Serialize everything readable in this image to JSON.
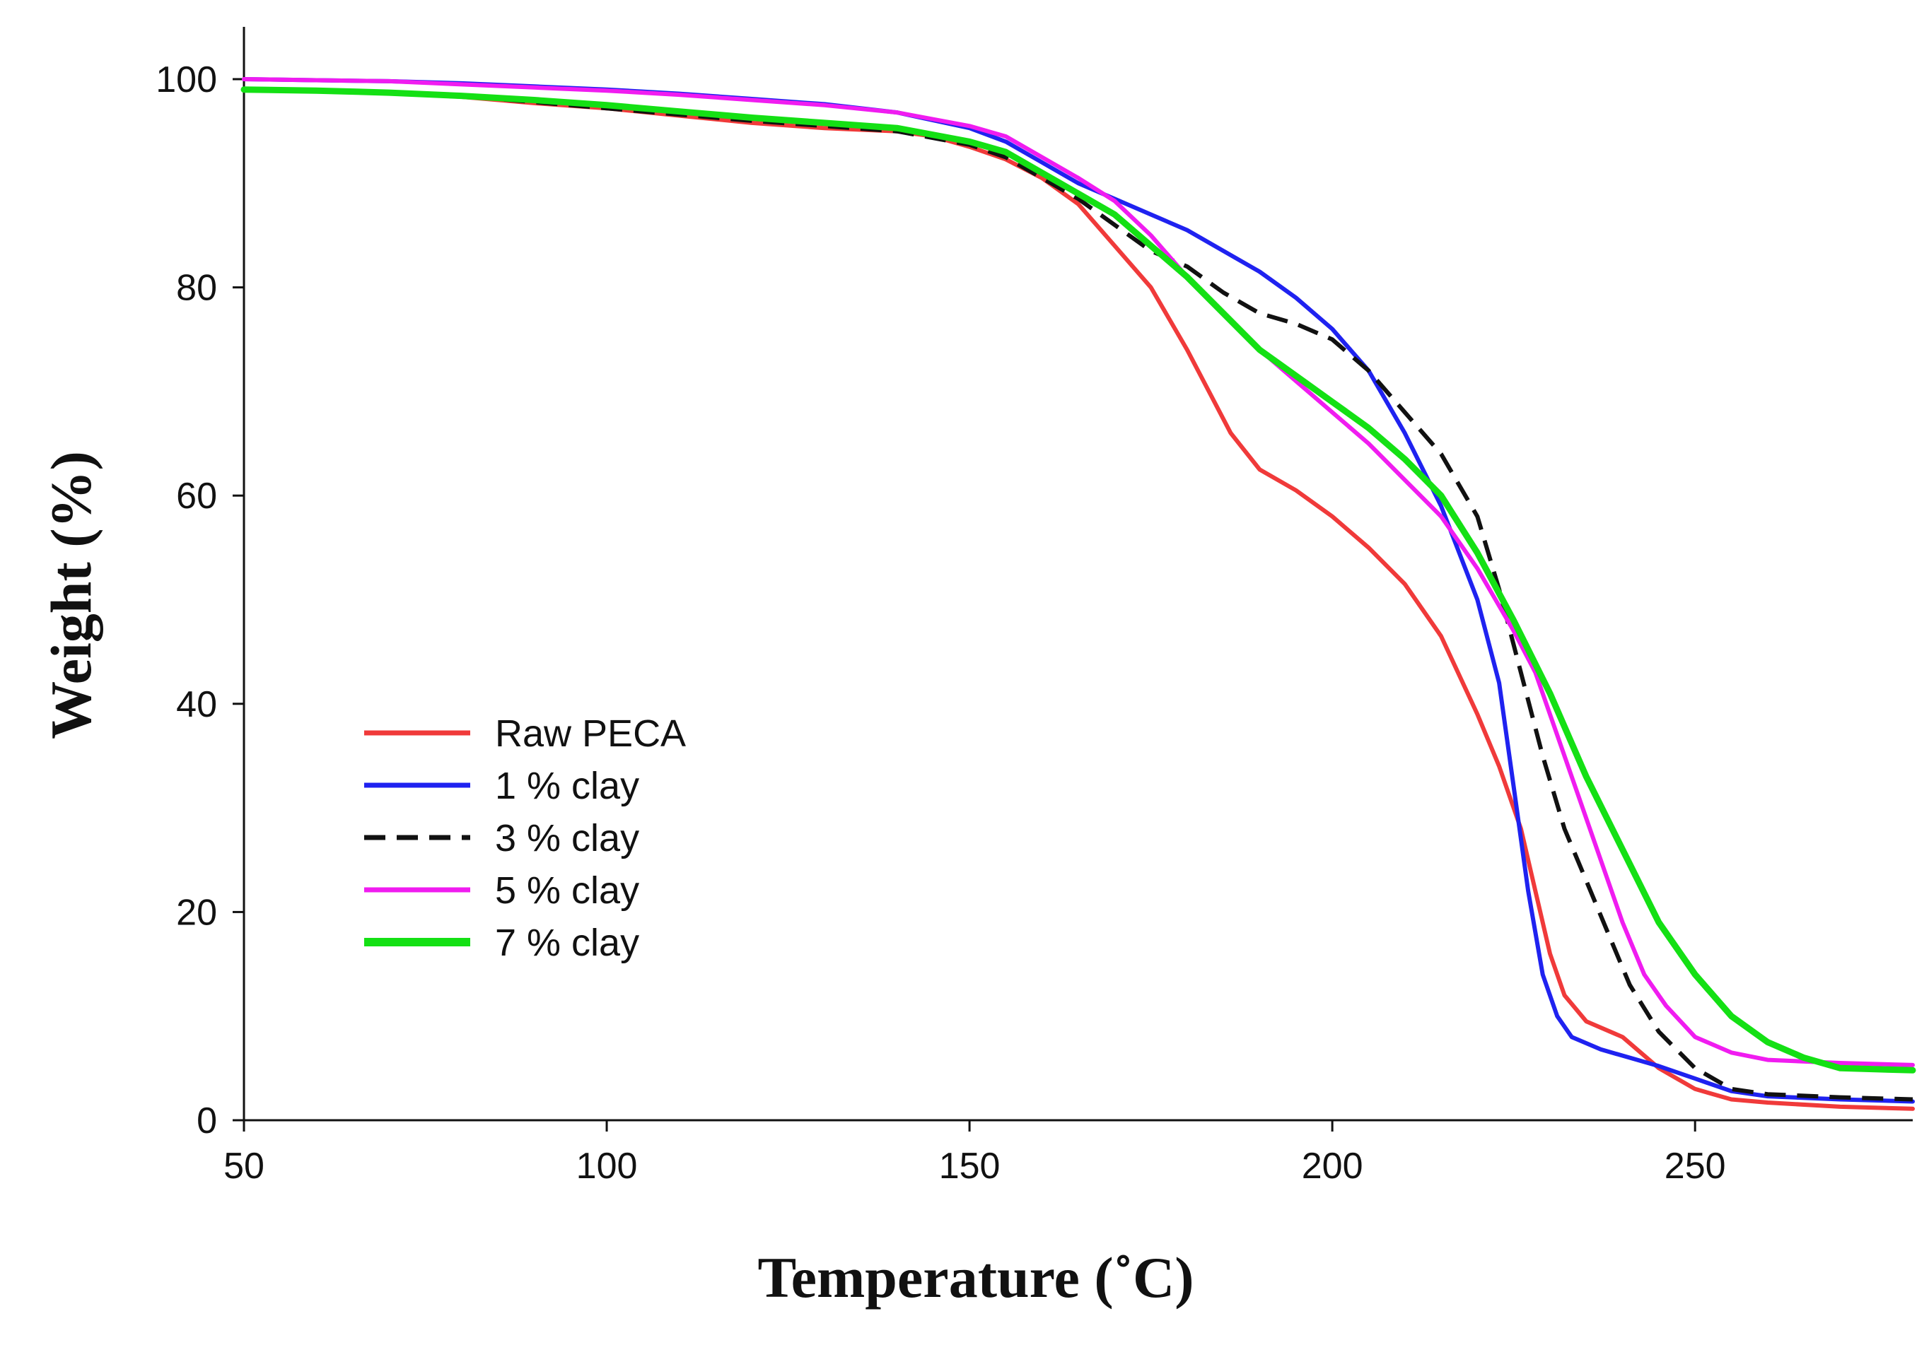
{
  "chart_data": {
    "type": "line",
    "xlabel": "Temperature (˚C)",
    "ylabel": "Weight (%)",
    "xlim": [
      50,
      280
    ],
    "ylim": [
      0,
      105
    ],
    "xticks": [
      50,
      100,
      150,
      200,
      250
    ],
    "yticks": [
      0,
      20,
      40,
      60,
      80,
      100
    ],
    "grid": false,
    "legend_position": "lower-left",
    "series": [
      {
        "name": "Raw PECA",
        "color": "#f03a3a",
        "dash": "solid",
        "points": [
          [
            50,
            99
          ],
          [
            60,
            98.9
          ],
          [
            70,
            98.7
          ],
          [
            80,
            98.3
          ],
          [
            90,
            97.7
          ],
          [
            100,
            97.2
          ],
          [
            110,
            96.5
          ],
          [
            120,
            95.8
          ],
          [
            130,
            95.3
          ],
          [
            140,
            95
          ],
          [
            145,
            94.5
          ],
          [
            150,
            93.5
          ],
          [
            155,
            92.3
          ],
          [
            160,
            90.5
          ],
          [
            165,
            88
          ],
          [
            170,
            84
          ],
          [
            175,
            80
          ],
          [
            180,
            74
          ],
          [
            183,
            70
          ],
          [
            186,
            66
          ],
          [
            190,
            62.5
          ],
          [
            195,
            60.5
          ],
          [
            200,
            58
          ],
          [
            205,
            55
          ],
          [
            210,
            51.5
          ],
          [
            215,
            46.5
          ],
          [
            220,
            39
          ],
          [
            223,
            34
          ],
          [
            226,
            28
          ],
          [
            228,
            22
          ],
          [
            230,
            16
          ],
          [
            232,
            12
          ],
          [
            235,
            9.5
          ],
          [
            240,
            8
          ],
          [
            245,
            5
          ],
          [
            250,
            3
          ],
          [
            255,
            2
          ],
          [
            260,
            1.7
          ],
          [
            270,
            1.3
          ],
          [
            280,
            1.1
          ]
        ]
      },
      {
        "name": "1 % clay",
        "color": "#1f22f0",
        "dash": "solid",
        "points": [
          [
            50,
            100
          ],
          [
            60,
            99.9
          ],
          [
            70,
            99.8
          ],
          [
            80,
            99.6
          ],
          [
            90,
            99.3
          ],
          [
            100,
            99
          ],
          [
            110,
            98.6
          ],
          [
            120,
            98.1
          ],
          [
            130,
            97.6
          ],
          [
            140,
            96.8
          ],
          [
            150,
            95.3
          ],
          [
            155,
            94
          ],
          [
            160,
            92
          ],
          [
            165,
            90
          ],
          [
            170,
            88.5
          ],
          [
            175,
            87
          ],
          [
            180,
            85.5
          ],
          [
            190,
            81.5
          ],
          [
            195,
            79
          ],
          [
            200,
            76
          ],
          [
            205,
            72
          ],
          [
            210,
            66
          ],
          [
            215,
            59
          ],
          [
            220,
            50
          ],
          [
            223,
            42
          ],
          [
            225,
            32
          ],
          [
            227,
            22
          ],
          [
            229,
            14
          ],
          [
            231,
            10
          ],
          [
            233,
            8
          ],
          [
            237,
            6.8
          ],
          [
            245,
            5.2
          ],
          [
            250,
            4
          ],
          [
            255,
            2.8
          ],
          [
            260,
            2.3
          ],
          [
            270,
            2
          ],
          [
            280,
            1.8
          ]
        ]
      },
      {
        "name": "3 % clay",
        "color": "#111111",
        "dash": "dashed",
        "points": [
          [
            50,
            99
          ],
          [
            60,
            98.9
          ],
          [
            70,
            98.7
          ],
          [
            80,
            98.4
          ],
          [
            90,
            97.8
          ],
          [
            100,
            97.2
          ],
          [
            110,
            96.6
          ],
          [
            120,
            96
          ],
          [
            130,
            95.5
          ],
          [
            140,
            95
          ],
          [
            150,
            93.7
          ],
          [
            155,
            92.5
          ],
          [
            160,
            90.5
          ],
          [
            165,
            88.5
          ],
          [
            170,
            86
          ],
          [
            175,
            83.5
          ],
          [
            180,
            82
          ],
          [
            185,
            79.5
          ],
          [
            190,
            77.5
          ],
          [
            195,
            76.5
          ],
          [
            200,
            75
          ],
          [
            205,
            72
          ],
          [
            210,
            68
          ],
          [
            215,
            64
          ],
          [
            220,
            58
          ],
          [
            223,
            51
          ],
          [
            226,
            43
          ],
          [
            229,
            35
          ],
          [
            232,
            28
          ],
          [
            235,
            23
          ],
          [
            238,
            18
          ],
          [
            241,
            13
          ],
          [
            245,
            8.5
          ],
          [
            250,
            5
          ],
          [
            255,
            3
          ],
          [
            260,
            2.5
          ],
          [
            270,
            2.2
          ],
          [
            280,
            2
          ]
        ]
      },
      {
        "name": "5 % clay",
        "color": "#f01cf0",
        "dash": "solid",
        "points": [
          [
            50,
            100
          ],
          [
            60,
            99.9
          ],
          [
            70,
            99.8
          ],
          [
            80,
            99.5
          ],
          [
            90,
            99.2
          ],
          [
            100,
            98.9
          ],
          [
            110,
            98.5
          ],
          [
            120,
            98
          ],
          [
            130,
            97.5
          ],
          [
            140,
            96.8
          ],
          [
            150,
            95.5
          ],
          [
            155,
            94.5
          ],
          [
            160,
            92.5
          ],
          [
            165,
            90.5
          ],
          [
            170,
            88.3
          ],
          [
            175,
            85
          ],
          [
            180,
            81
          ],
          [
            185,
            77.5
          ],
          [
            190,
            74
          ],
          [
            195,
            71
          ],
          [
            200,
            68
          ],
          [
            205,
            65
          ],
          [
            210,
            61.5
          ],
          [
            215,
            58
          ],
          [
            220,
            53
          ],
          [
            225,
            47
          ],
          [
            228,
            43
          ],
          [
            231,
            37
          ],
          [
            234,
            31
          ],
          [
            237,
            25
          ],
          [
            240,
            19
          ],
          [
            243,
            14
          ],
          [
            246,
            11
          ],
          [
            250,
            8
          ],
          [
            255,
            6.5
          ],
          [
            260,
            5.8
          ],
          [
            270,
            5.5
          ],
          [
            280,
            5.3
          ]
        ]
      },
      {
        "name": "7 % clay",
        "color": "#14e014",
        "dash": "solid",
        "points": [
          [
            50,
            99
          ],
          [
            60,
            98.9
          ],
          [
            70,
            98.7
          ],
          [
            80,
            98.4
          ],
          [
            90,
            98
          ],
          [
            100,
            97.5
          ],
          [
            110,
            96.9
          ],
          [
            120,
            96.3
          ],
          [
            130,
            95.8
          ],
          [
            140,
            95.3
          ],
          [
            150,
            94
          ],
          [
            155,
            93
          ],
          [
            160,
            91
          ],
          [
            165,
            89
          ],
          [
            170,
            87
          ],
          [
            175,
            84
          ],
          [
            180,
            81
          ],
          [
            185,
            77.5
          ],
          [
            190,
            74
          ],
          [
            195,
            71.5
          ],
          [
            200,
            69
          ],
          [
            205,
            66.5
          ],
          [
            210,
            63.5
          ],
          [
            215,
            60
          ],
          [
            220,
            54.5
          ],
          [
            225,
            48
          ],
          [
            230,
            41
          ],
          [
            235,
            33
          ],
          [
            240,
            26
          ],
          [
            245,
            19
          ],
          [
            250,
            14
          ],
          [
            255,
            10
          ],
          [
            260,
            7.5
          ],
          [
            265,
            6
          ],
          [
            270,
            5
          ],
          [
            280,
            4.8
          ]
        ]
      }
    ]
  }
}
